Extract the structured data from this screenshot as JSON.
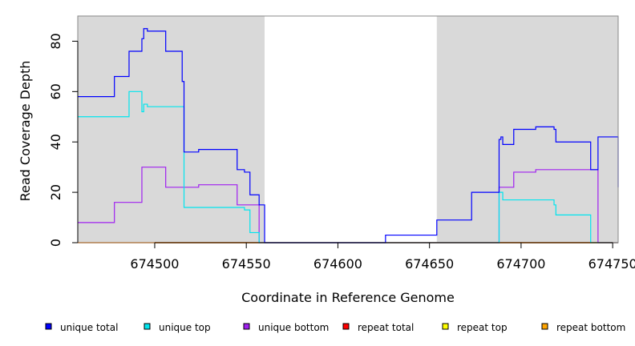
{
  "chart_data": {
    "type": "line",
    "xlabel": "Coordinate in Reference Genome",
    "ylabel": "Read Coverage Depth",
    "xlim": [
      674458,
      674753
    ],
    "ylim": [
      0,
      90
    ],
    "x_ticks": [
      674500,
      674550,
      674600,
      674650,
      674700,
      674750
    ],
    "x_tick_labels": [
      "674500",
      "674550",
      "674600",
      "674650",
      "674700",
      "674750"
    ],
    "y_ticks": [
      0,
      20,
      40,
      60,
      80
    ],
    "y_tick_labels": [
      "0",
      "20",
      "40",
      "60",
      "80"
    ],
    "shaded_regions": [
      [
        674458,
        674560
      ],
      [
        674654,
        674753
      ]
    ],
    "colors": {
      "shade": "#d9d9d9"
    },
    "series": [
      {
        "name": "unique total",
        "color": "#0000ff",
        "points": [
          [
            674458,
            58
          ],
          [
            674478,
            58
          ],
          [
            674478,
            66
          ],
          [
            674486,
            66
          ],
          [
            674486,
            76
          ],
          [
            674493,
            76
          ],
          [
            674493,
            81
          ],
          [
            674494,
            81
          ],
          [
            674494,
            85
          ],
          [
            674496,
            85
          ],
          [
            674496,
            84
          ],
          [
            674506,
            84
          ],
          [
            674506,
            76
          ],
          [
            674515,
            76
          ],
          [
            674515,
            64
          ],
          [
            674516,
            64
          ],
          [
            674516,
            36
          ],
          [
            674524,
            36
          ],
          [
            674524,
            37
          ],
          [
            674545,
            37
          ],
          [
            674545,
            29
          ],
          [
            674549,
            29
          ],
          [
            674549,
            28
          ],
          [
            674552,
            28
          ],
          [
            674552,
            19
          ],
          [
            674557,
            19
          ],
          [
            674557,
            15
          ],
          [
            674560,
            15
          ],
          [
            674560,
            0
          ],
          [
            674626,
            0
          ],
          [
            674626,
            3
          ],
          [
            674654,
            3
          ],
          [
            674654,
            9
          ],
          [
            674673,
            9
          ],
          [
            674673,
            20
          ],
          [
            674688,
            20
          ],
          [
            674688,
            41
          ],
          [
            674689,
            41
          ],
          [
            674689,
            42
          ],
          [
            674690,
            42
          ],
          [
            674690,
            39
          ],
          [
            674696,
            39
          ],
          [
            674696,
            45
          ],
          [
            674708,
            45
          ],
          [
            674708,
            46
          ],
          [
            674718,
            46
          ],
          [
            674718,
            45
          ],
          [
            674719,
            45
          ],
          [
            674719,
            40
          ],
          [
            674738,
            40
          ],
          [
            674738,
            29
          ],
          [
            674742,
            29
          ],
          [
            674742,
            42
          ],
          [
            674753,
            42
          ],
          [
            674753,
            22
          ]
        ]
      },
      {
        "name": "unique top",
        "color": "#00e5ee",
        "points": [
          [
            674458,
            50
          ],
          [
            674486,
            50
          ],
          [
            674486,
            60
          ],
          [
            674493,
            60
          ],
          [
            674493,
            52
          ],
          [
            674494,
            52
          ],
          [
            674494,
            55
          ],
          [
            674496,
            55
          ],
          [
            674496,
            54
          ],
          [
            674516,
            54
          ],
          [
            674516,
            14
          ],
          [
            674549,
            14
          ],
          [
            674549,
            13
          ],
          [
            674552,
            13
          ],
          [
            674552,
            4
          ],
          [
            674557,
            4
          ],
          [
            674557,
            0
          ],
          [
            674688,
            0
          ],
          [
            674688,
            20
          ],
          [
            674690,
            20
          ],
          [
            674690,
            17
          ],
          [
            674718,
            17
          ],
          [
            674718,
            15
          ],
          [
            674719,
            15
          ],
          [
            674719,
            11
          ],
          [
            674738,
            11
          ],
          [
            674738,
            0
          ],
          [
            674753,
            0
          ]
        ]
      },
      {
        "name": "unique bottom",
        "color": "#a020f0",
        "points": [
          [
            674458,
            8
          ],
          [
            674478,
            8
          ],
          [
            674478,
            16
          ],
          [
            674493,
            16
          ],
          [
            674493,
            30
          ],
          [
            674506,
            30
          ],
          [
            674506,
            22
          ],
          [
            674524,
            22
          ],
          [
            674524,
            23
          ],
          [
            674545,
            23
          ],
          [
            674545,
            15
          ],
          [
            674557,
            15
          ],
          [
            674557,
            0
          ],
          [
            674688,
            0
          ],
          [
            674688,
            22
          ],
          [
            674696,
            22
          ],
          [
            674696,
            28
          ],
          [
            674708,
            28
          ],
          [
            674708,
            29
          ],
          [
            674742,
            29
          ],
          [
            674742,
            0
          ],
          [
            674753,
            0
          ]
        ]
      },
      {
        "name": "repeat total",
        "color": "#ff0000",
        "points": [
          [
            674458,
            0
          ],
          [
            674560,
            0
          ],
          [
            674654,
            0
          ],
          [
            674753,
            0
          ]
        ]
      },
      {
        "name": "repeat top",
        "color": "#ffff00",
        "points": [
          [
            674458,
            0
          ],
          [
            674560,
            0
          ],
          [
            674654,
            0
          ],
          [
            674753,
            0
          ]
        ]
      },
      {
        "name": "repeat bottom",
        "color": "#ffa500",
        "points": [
          [
            674458,
            0
          ],
          [
            674560,
            0
          ],
          [
            674654,
            0
          ],
          [
            674753,
            0
          ]
        ]
      }
    ],
    "legend_position": "bottom"
  }
}
